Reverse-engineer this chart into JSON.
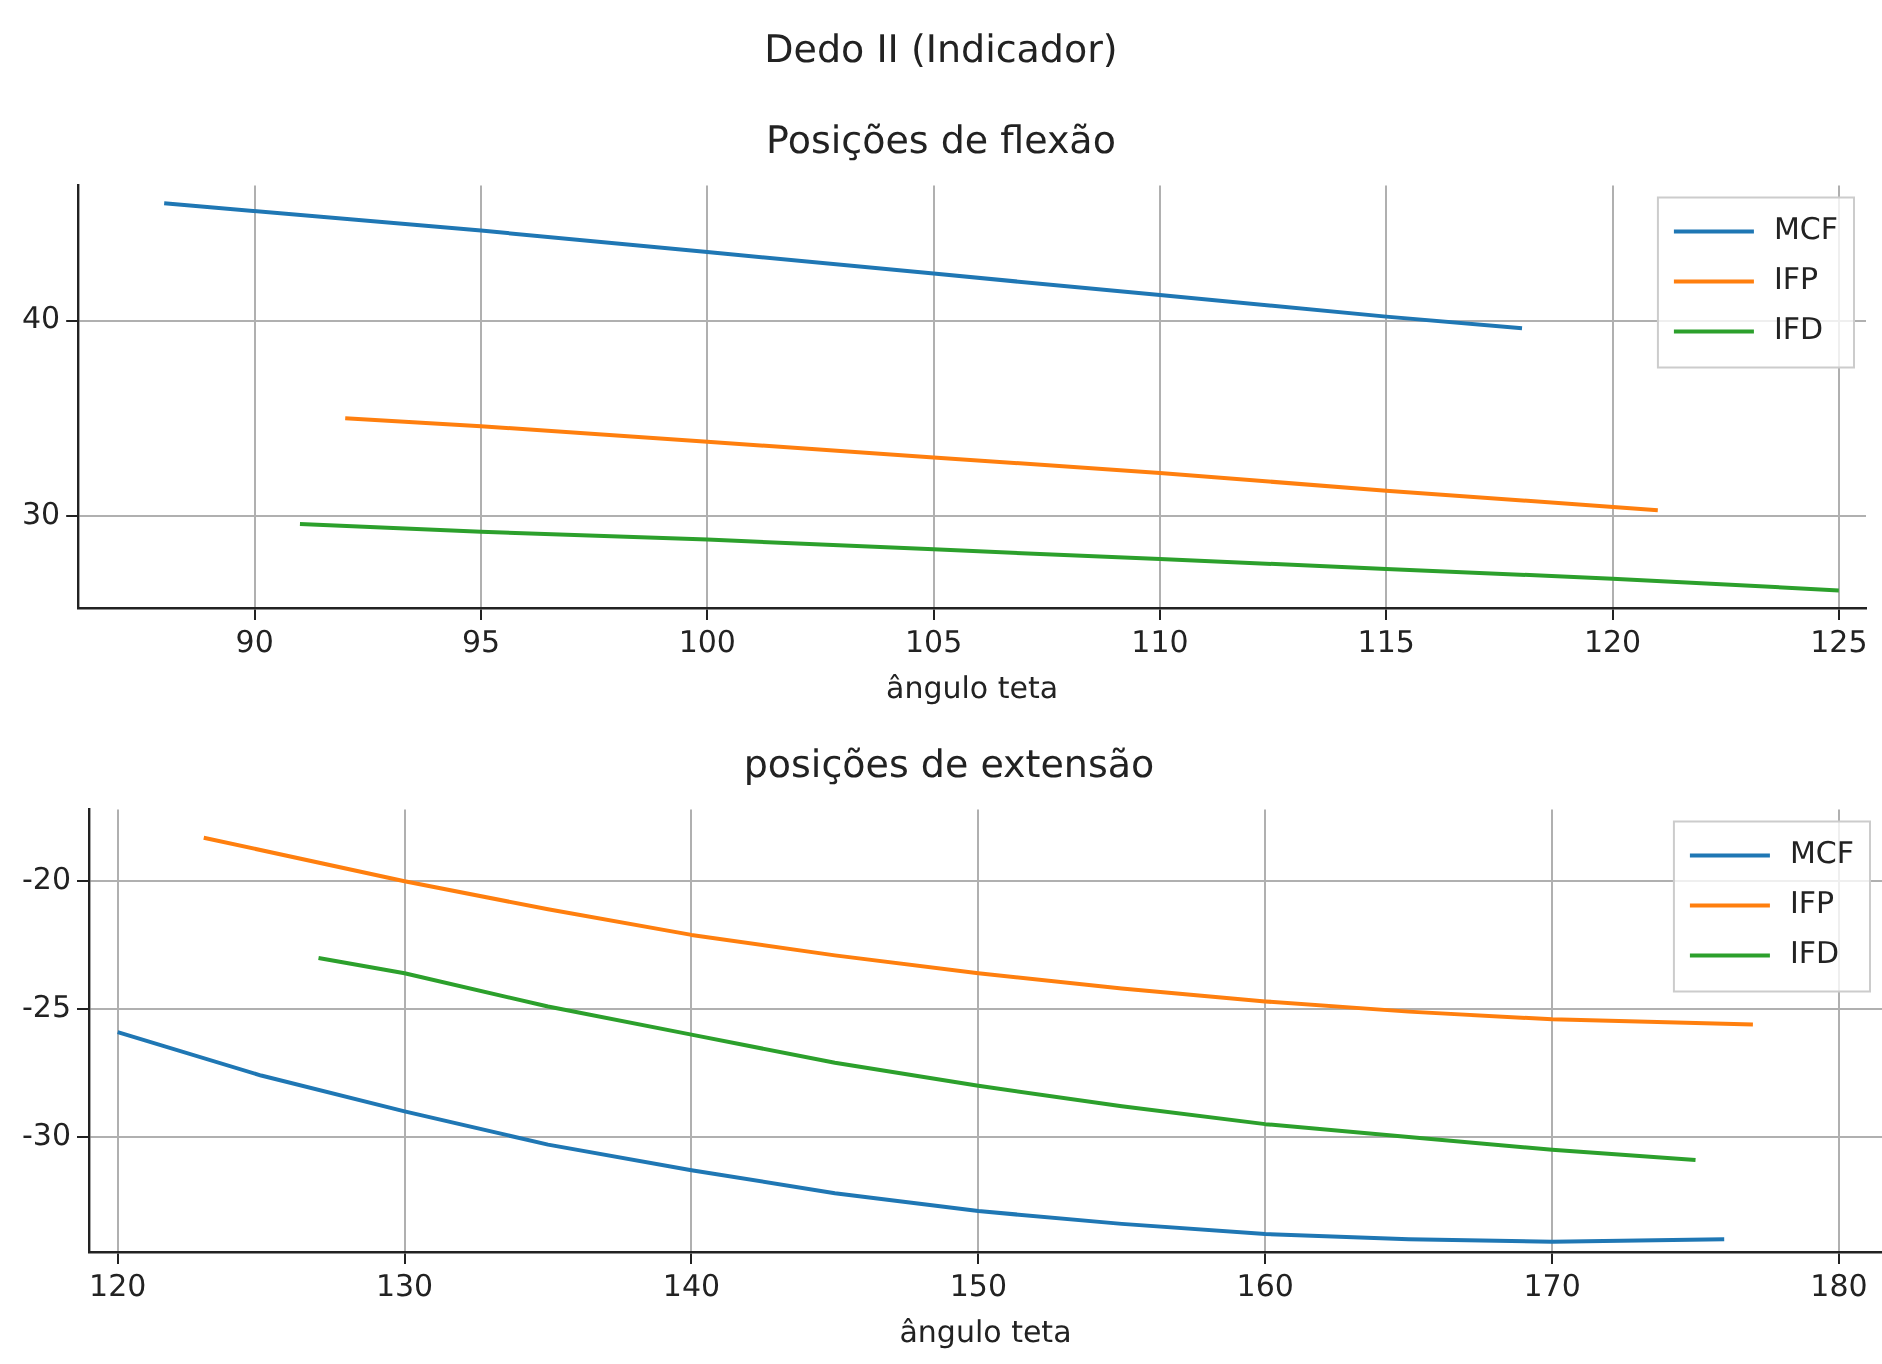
{
  "chart_data": [
    {
      "type": "line",
      "annotations": [
        "Dedo II (Indicador)"
      ],
      "title": "Posições de flexão",
      "xlabel": "ângulo teta",
      "xlim": [
        86.1,
        125.6
      ],
      "xticks": [
        90,
        95,
        100,
        105,
        110,
        115,
        120,
        125
      ],
      "ylim": [
        25.3,
        46.9
      ],
      "yticks": [
        30,
        40
      ],
      "grid": true,
      "legend": "top right",
      "line_style": "solid",
      "series": [
        {
          "name": "MCF",
          "color": "#1f77b4",
          "x": [
            88,
            95,
            100,
            105,
            110,
            115,
            118
          ],
          "values": [
            46.0,
            44.6,
            43.5,
            42.4,
            41.3,
            40.2,
            39.6
          ]
        },
        {
          "name": "IFP",
          "color": "#ff7f0e",
          "x": [
            92,
            95,
            100,
            105,
            110,
            115,
            121
          ],
          "values": [
            35.0,
            34.6,
            33.8,
            33.0,
            32.2,
            31.3,
            30.3
          ]
        },
        {
          "name": "IFD",
          "color": "#2ca02c",
          "x": [
            91,
            95,
            100,
            105,
            110,
            115,
            120,
            125
          ],
          "values": [
            29.6,
            29.2,
            28.8,
            28.3,
            27.8,
            27.3,
            26.8,
            26.2
          ]
        }
      ]
    },
    {
      "type": "line",
      "title": "posições de extensão",
      "xlabel": "ângulo teta",
      "xlim": [
        119,
        181.5
      ],
      "xticks": [
        120,
        130,
        140,
        150,
        160,
        170,
        180
      ],
      "ylim": [
        -34.5,
        -17.2
      ],
      "yticks": [
        -20,
        -25,
        -30
      ],
      "grid": true,
      "legend": "top right",
      "line_style": "solid",
      "series": [
        {
          "name": "MCF",
          "color": "#1f77b4",
          "x": [
            120,
            125,
            130,
            135,
            140,
            145,
            150,
            155,
            160,
            165,
            170,
            176
          ],
          "values": [
            -25.9,
            -27.6,
            -29.0,
            -30.3,
            -31.3,
            -32.2,
            -32.9,
            -33.4,
            -33.8,
            -34.0,
            -34.1,
            -34.0
          ]
        },
        {
          "name": "IFP",
          "color": "#ff7f0e",
          "x": [
            123,
            130,
            135,
            140,
            145,
            150,
            155,
            160,
            165,
            170,
            177
          ],
          "values": [
            -18.3,
            -20.0,
            -21.1,
            -22.1,
            -22.9,
            -23.6,
            -24.2,
            -24.7,
            -25.1,
            -25.4,
            -25.6
          ]
        },
        {
          "name": "IFD",
          "color": "#2ca02c",
          "x": [
            127,
            130,
            135,
            140,
            145,
            150,
            155,
            160,
            165,
            170,
            175
          ],
          "values": [
            -23.0,
            -23.6,
            -24.9,
            -26.0,
            -27.1,
            -28.0,
            -28.8,
            -29.5,
            -30.0,
            -30.5,
            -30.9
          ]
        }
      ]
    }
  ]
}
